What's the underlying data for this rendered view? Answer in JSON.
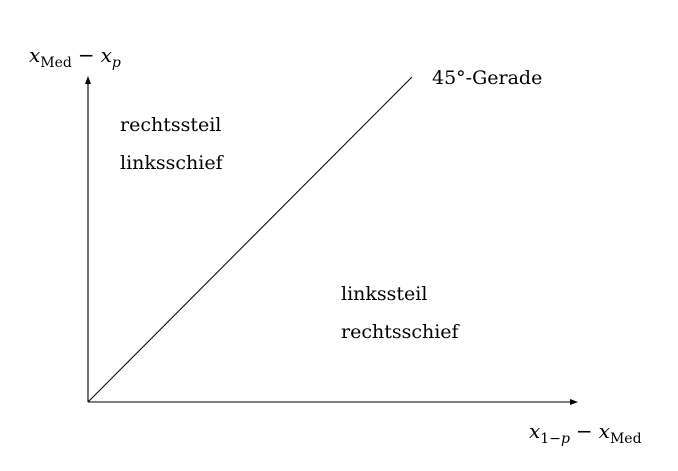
{
  "y_axis": {
    "var1": "x",
    "var1_sub": "Med",
    "minus": "−",
    "var2": "x",
    "var2_sub": "p"
  },
  "x_axis": {
    "var1": "x",
    "var1_sub_a": "1",
    "var1_sub_minus": "−",
    "var1_sub_b": "p",
    "minus": "−",
    "var2": "x",
    "var2_sub": "Med"
  },
  "diagonal_label": "45°-Gerade",
  "upper_region": {
    "line1": "rechtssteil",
    "line2": "linksschief"
  },
  "lower_region": {
    "line1": "linkssteil",
    "line2": "rechtsschief"
  }
}
